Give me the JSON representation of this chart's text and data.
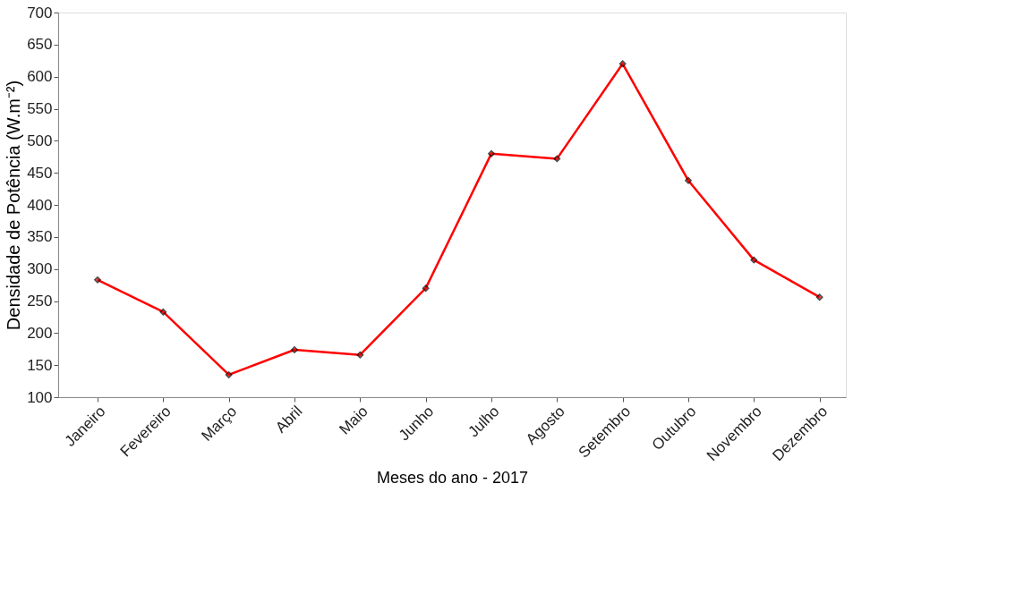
{
  "chart_data": {
    "type": "line",
    "xlabel": "Meses do ano - 2017",
    "ylabel": "Densidade de Potência (W.m⁻²)",
    "categories": [
      "Janeiro",
      "Fevereiro",
      "Março",
      "Abril",
      "Maio",
      "Junho",
      "Julho",
      "Agosto",
      "Setembro",
      "Outubro",
      "Novembro",
      "Dezembro"
    ],
    "series": [
      {
        "color": "#ff0000",
        "values": [
          283,
          233,
          135,
          174,
          166,
          270,
          480,
          472,
          620,
          438,
          314,
          256
        ]
      }
    ],
    "ylim": [
      100,
      700
    ],
    "yticks": [
      100,
      150,
      200,
      250,
      300,
      350,
      400,
      450,
      500,
      550,
      600,
      650,
      700
    ],
    "grid": false,
    "marker": "diamond",
    "line_style": "solid"
  }
}
